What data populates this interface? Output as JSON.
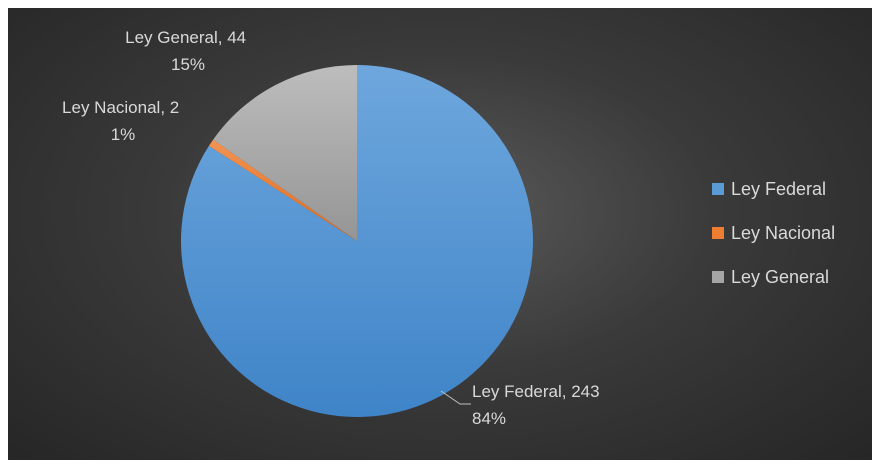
{
  "chart_data": {
    "type": "pie",
    "series": [
      {
        "name": "",
        "categories": [
          "Ley Federal",
          "Ley Nacional",
          "Ley General"
        ],
        "values": [
          243,
          2,
          44
        ],
        "percents": [
          "84%",
          "1%",
          "15%"
        ],
        "data_labels": [
          {
            "line1": "Ley Federal, 243",
            "line2": "84%"
          },
          {
            "line1": "Ley Nacional, 2",
            "line2": "1%"
          },
          {
            "line1": "Ley General, 44",
            "line2": "15%"
          }
        ]
      }
    ],
    "colors": [
      "#5b9bd5",
      "#ed7d31",
      "#a5a5a5"
    ],
    "legend": {
      "position": "right",
      "entries": [
        "Ley Federal",
        "Ley Nacional",
        "Ley General"
      ]
    }
  }
}
